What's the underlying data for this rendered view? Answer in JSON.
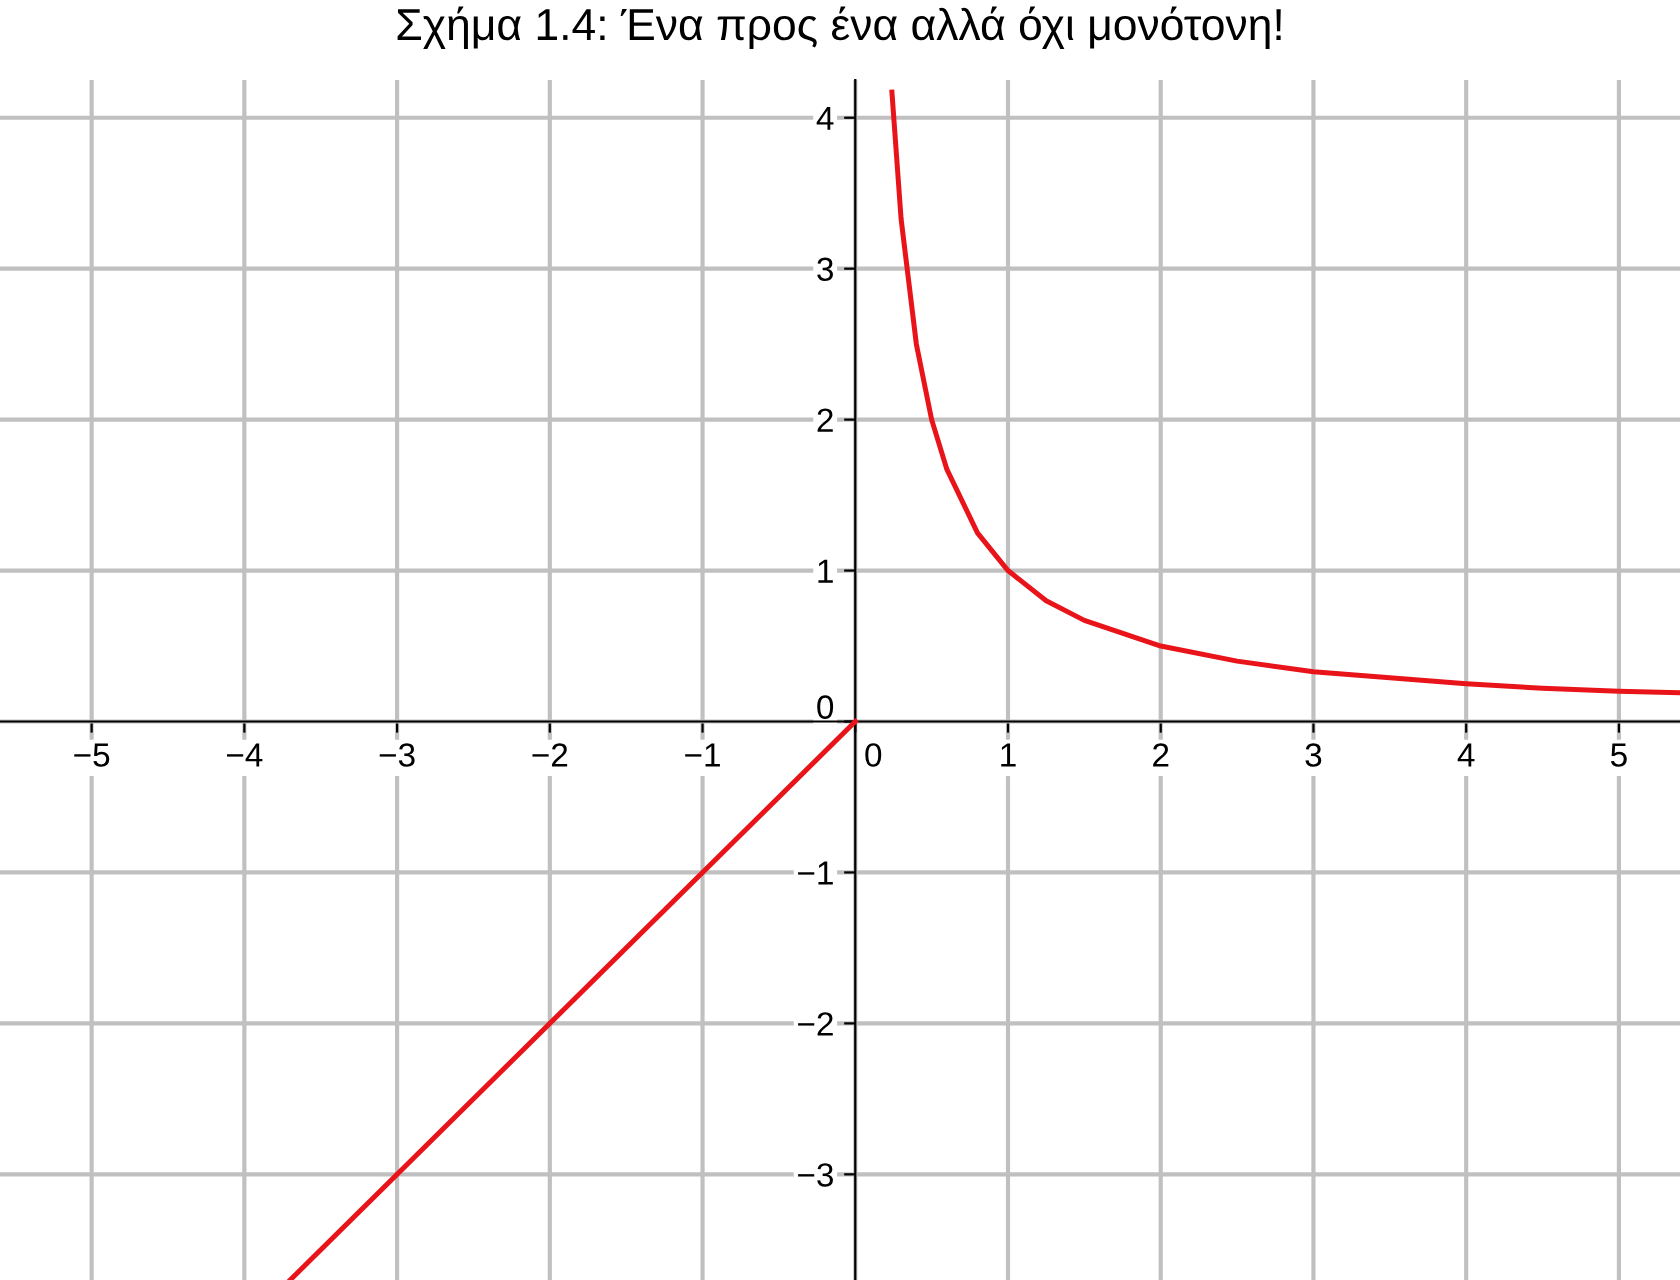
{
  "chart_data": {
    "type": "line",
    "title": "Σχήμα 1.4: Ένα προς ένα αλλά όχι μονότονη!",
    "series": [
      {
        "color": "#e8141a",
        "x": [
          -3.7,
          0
        ],
        "values": [
          -3.7,
          0
        ]
      },
      {
        "color": "#e8141a",
        "x": [
          0.24,
          0.3,
          0.4,
          0.5,
          0.6,
          0.8,
          1,
          1.25,
          1.5,
          2,
          2.5,
          3,
          3.5,
          4,
          4.5,
          5,
          5.4
        ],
        "values": [
          4.17,
          3.33,
          2.5,
          2,
          1.67,
          1.25,
          1,
          0.8,
          0.67,
          0.5,
          0.4,
          0.33,
          0.29,
          0.25,
          0.22,
          0.2,
          0.19
        ]
      }
    ],
    "xlim": [
      -5.6,
      5.4
    ],
    "ylim": [
      -3.7,
      4.25
    ],
    "xticks": [
      {
        "value": -5,
        "label": "−5"
      },
      {
        "value": -4,
        "label": "−4"
      },
      {
        "value": -3,
        "label": "−3"
      },
      {
        "value": -2,
        "label": "−2"
      },
      {
        "value": -1,
        "label": "−1"
      },
      0,
      1,
      2,
      3,
      4,
      5
    ],
    "yticks": [
      {
        "value": -3,
        "label": "−3"
      },
      {
        "value": -2,
        "label": "−2"
      },
      {
        "value": -1,
        "label": "−1"
      },
      0,
      1,
      2,
      3,
      4
    ],
    "grid": true,
    "marker": "none",
    "line_style": "solid",
    "legend": false
  }
}
